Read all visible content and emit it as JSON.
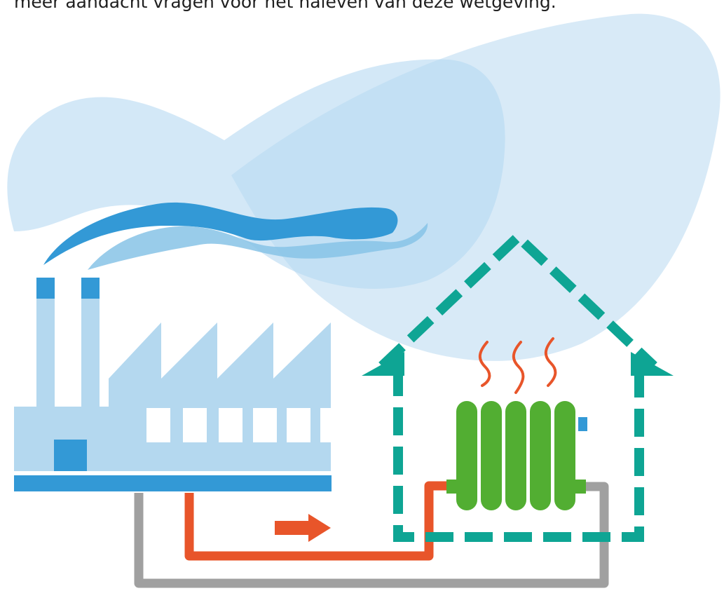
{
  "caption": "meer aandacht vragen voor het naleven van deze wetgeving.",
  "colors": {
    "cloud_light": "#d6e9f7",
    "cloud_mid": "#b5d9f1",
    "smoke_dark": "#3399d6",
    "smoke_light": "#87c3e6",
    "factory": "#b4d8ef",
    "factory_accent": "#3399d6",
    "house_outline": "#0ea594",
    "radiator": "#52ae32",
    "heat_waves": "#e8552a",
    "hot_pipe": "#e8552a",
    "return_pipe": "#a0a0a0",
    "arrow": "#e8552a",
    "window": "#ffffff"
  },
  "icons": {
    "factory": "factory-icon",
    "house": "house-icon",
    "radiator": "radiator-icon",
    "flow_arrow": "arrow-right-icon"
  }
}
